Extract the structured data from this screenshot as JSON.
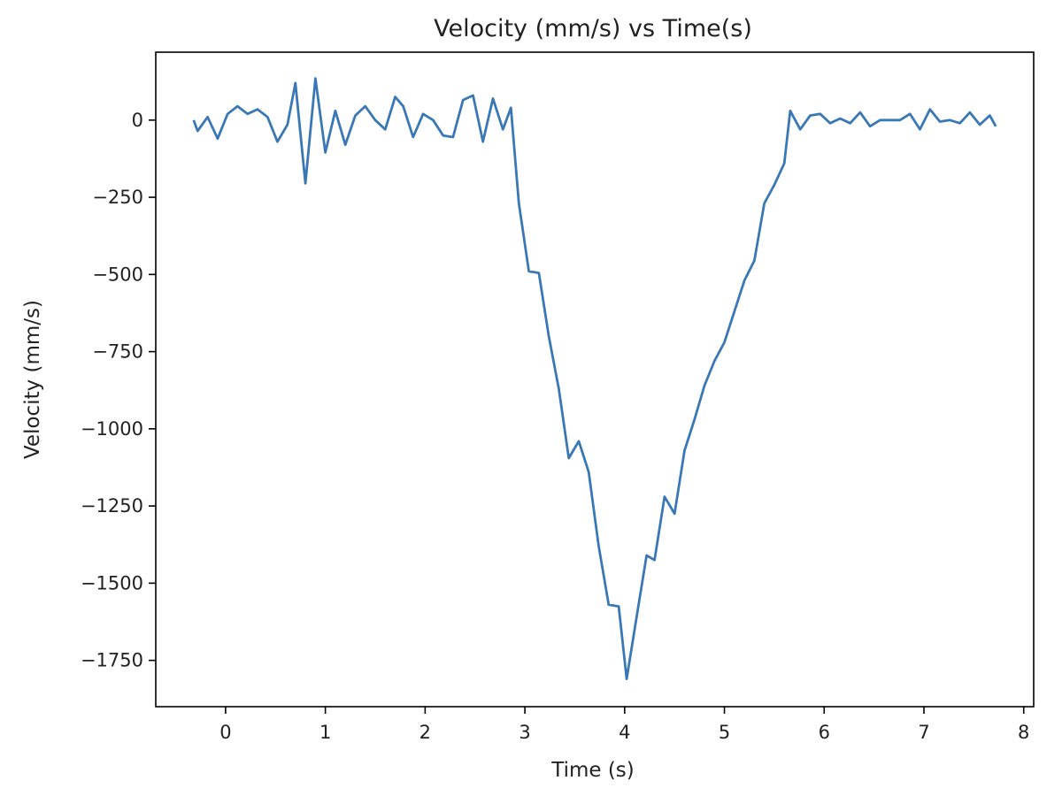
{
  "chart_data": {
    "type": "line",
    "title": "Velocity (mm/s) vs Time(s)",
    "xlabel": "Time (s)",
    "ylabel": "Velocity (mm/s)",
    "xlim": [
      -0.7,
      8.1
    ],
    "ylim": [
      -1900,
      220
    ],
    "xticks": [
      0,
      1,
      2,
      3,
      4,
      5,
      6,
      7,
      8
    ],
    "yticks": [
      0,
      -250,
      -500,
      -750,
      -1000,
      -1250,
      -1500,
      -1750
    ],
    "ytick_labels": [
      "0",
      "−250",
      "−500",
      "−750",
      "−1000",
      "−1250",
      "−1500",
      "−1750"
    ],
    "grid": false,
    "line_color": "#3a78b5",
    "series": [
      {
        "x": [
          -0.32,
          -0.28,
          -0.18,
          -0.08,
          0.02,
          0.12,
          0.22,
          0.32,
          0.42,
          0.52,
          0.62,
          0.7,
          0.8,
          0.9,
          1.0,
          1.1,
          1.2,
          1.3,
          1.4,
          1.5,
          1.6,
          1.7,
          1.78,
          1.88,
          1.98,
          2.08,
          2.18,
          2.28,
          2.38,
          2.48,
          2.58,
          2.68,
          2.78,
          2.86,
          2.94,
          3.04,
          3.14,
          3.24,
          3.34,
          3.44,
          3.54,
          3.64,
          3.74,
          3.84,
          3.94,
          4.02,
          4.12,
          4.22,
          4.3,
          4.4,
          4.5,
          4.6,
          4.7,
          4.8,
          4.9,
          5.0,
          5.1,
          5.2,
          5.3,
          5.4,
          5.5,
          5.6,
          5.66,
          5.76,
          5.86,
          5.96,
          6.06,
          6.16,
          6.26,
          6.36,
          6.46,
          6.56,
          6.66,
          6.76,
          6.86,
          6.96,
          7.06,
          7.16,
          7.26,
          7.36,
          7.46,
          7.56,
          7.66,
          7.72
        ],
        "values": [
          0,
          -35,
          10,
          -60,
          20,
          45,
          20,
          35,
          10,
          -70,
          -15,
          120,
          -205,
          135,
          -105,
          30,
          -80,
          15,
          45,
          0,
          -30,
          75,
          45,
          -55,
          20,
          0,
          -50,
          -55,
          65,
          80,
          -70,
          70,
          -30,
          40,
          -270,
          -490,
          -495,
          -700,
          -870,
          -1095,
          -1040,
          -1140,
          -1380,
          -1570,
          -1575,
          -1810,
          -1610,
          -1410,
          -1425,
          -1220,
          -1275,
          -1070,
          -970,
          -860,
          -780,
          -720,
          -620,
          -520,
          -455,
          -270,
          -210,
          -140,
          30,
          -30,
          15,
          20,
          -10,
          5,
          -10,
          25,
          -20,
          0,
          0,
          0,
          20,
          -30,
          35,
          -5,
          0,
          -10,
          25,
          -15,
          15,
          -20
        ]
      }
    ]
  }
}
